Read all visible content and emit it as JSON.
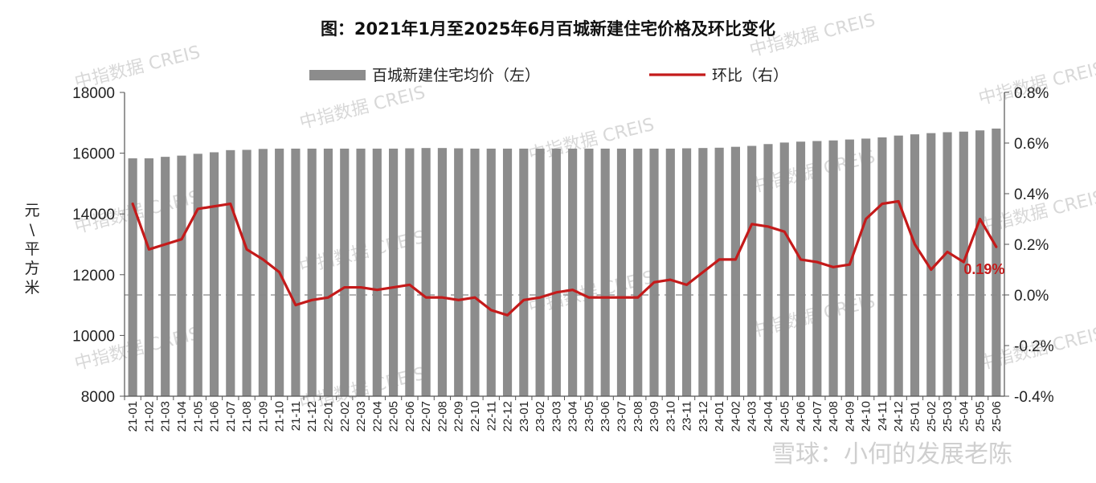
{
  "chart_data": {
    "type": "bar",
    "title": "图：2021年1月至2025年6月百城新建住宅价格及环比变化",
    "ylabel": "元\\平方米",
    "ylim": [
      8000,
      18000
    ],
    "y_ticks": [
      "8000",
      "10000",
      "12000",
      "14000",
      "16000",
      "18000"
    ],
    "y2lim": [
      -0.4,
      0.8
    ],
    "y2_ticks": [
      "-0.4%",
      "-0.2%",
      "0.0%",
      "0.2%",
      "0.4%",
      "0.6%",
      "0.8%"
    ],
    "legend_position": "top",
    "grid": false,
    "categories": [
      "21-01",
      "21-02",
      "21-03",
      "21-04",
      "21-05",
      "21-06",
      "21-07",
      "21-08",
      "21-09",
      "21-10",
      "21-11",
      "21-12",
      "22-01",
      "22-02",
      "22-03",
      "22-04",
      "22-05",
      "22-06",
      "22-07",
      "22-08",
      "22-09",
      "22-10",
      "22-11",
      "22-12",
      "23-01",
      "23-02",
      "23-03",
      "23-04",
      "23-05",
      "23-06",
      "23-07",
      "23-08",
      "23-09",
      "23-10",
      "23-11",
      "23-12",
      "24-01",
      "24-02",
      "24-03",
      "24-04",
      "24-05",
      "24-06",
      "24-07",
      "24-08",
      "24-09",
      "24-10",
      "24-11",
      "24-12",
      "25-01",
      "25-02",
      "25-03",
      "25-04",
      "25-05",
      "25-06"
    ],
    "series": [
      {
        "name": "百城新建住宅均价（左）",
        "type": "bar",
        "axis": "left",
        "color": "#8c8c8c",
        "values": [
          15830,
          15830,
          15880,
          15920,
          15980,
          16030,
          16100,
          16110,
          16140,
          16150,
          16150,
          16150,
          16150,
          16150,
          16150,
          16150,
          16150,
          16160,
          16170,
          16170,
          16160,
          16150,
          16150,
          16150,
          16150,
          16150,
          16150,
          16150,
          16150,
          16150,
          16150,
          16150,
          16150,
          16150,
          16160,
          16170,
          16180,
          16210,
          16240,
          16300,
          16350,
          16380,
          16400,
          16420,
          16450,
          16480,
          16520,
          16580,
          16620,
          16660,
          16690,
          16710,
          16750,
          16810
        ]
      },
      {
        "name": "环比（右）",
        "type": "line",
        "axis": "right",
        "color": "#c41a1a",
        "values": [
          0.36,
          0.18,
          0.2,
          0.22,
          0.34,
          0.35,
          0.36,
          0.18,
          0.14,
          0.09,
          -0.04,
          -0.02,
          -0.01,
          0.03,
          0.03,
          0.02,
          0.03,
          0.04,
          -0.01,
          -0.01,
          -0.02,
          -0.01,
          -0.06,
          -0.08,
          -0.02,
          -0.01,
          0.01,
          0.02,
          -0.01,
          -0.01,
          -0.01,
          -0.01,
          0.05,
          0.06,
          0.04,
          0.09,
          0.14,
          0.14,
          0.28,
          0.27,
          0.25,
          0.14,
          0.13,
          0.11,
          0.12,
          0.3,
          0.36,
          0.37,
          0.2,
          0.1,
          0.17,
          0.13,
          0.3,
          0.19
        ]
      }
    ],
    "annotations": [
      {
        "text": "0.19%",
        "category": "25-06"
      }
    ]
  },
  "watermark": {
    "text": "中指数据 CREIS",
    "color": "#d8d8d8"
  },
  "credit": {
    "text": "雪球：小何的发展老陈"
  }
}
